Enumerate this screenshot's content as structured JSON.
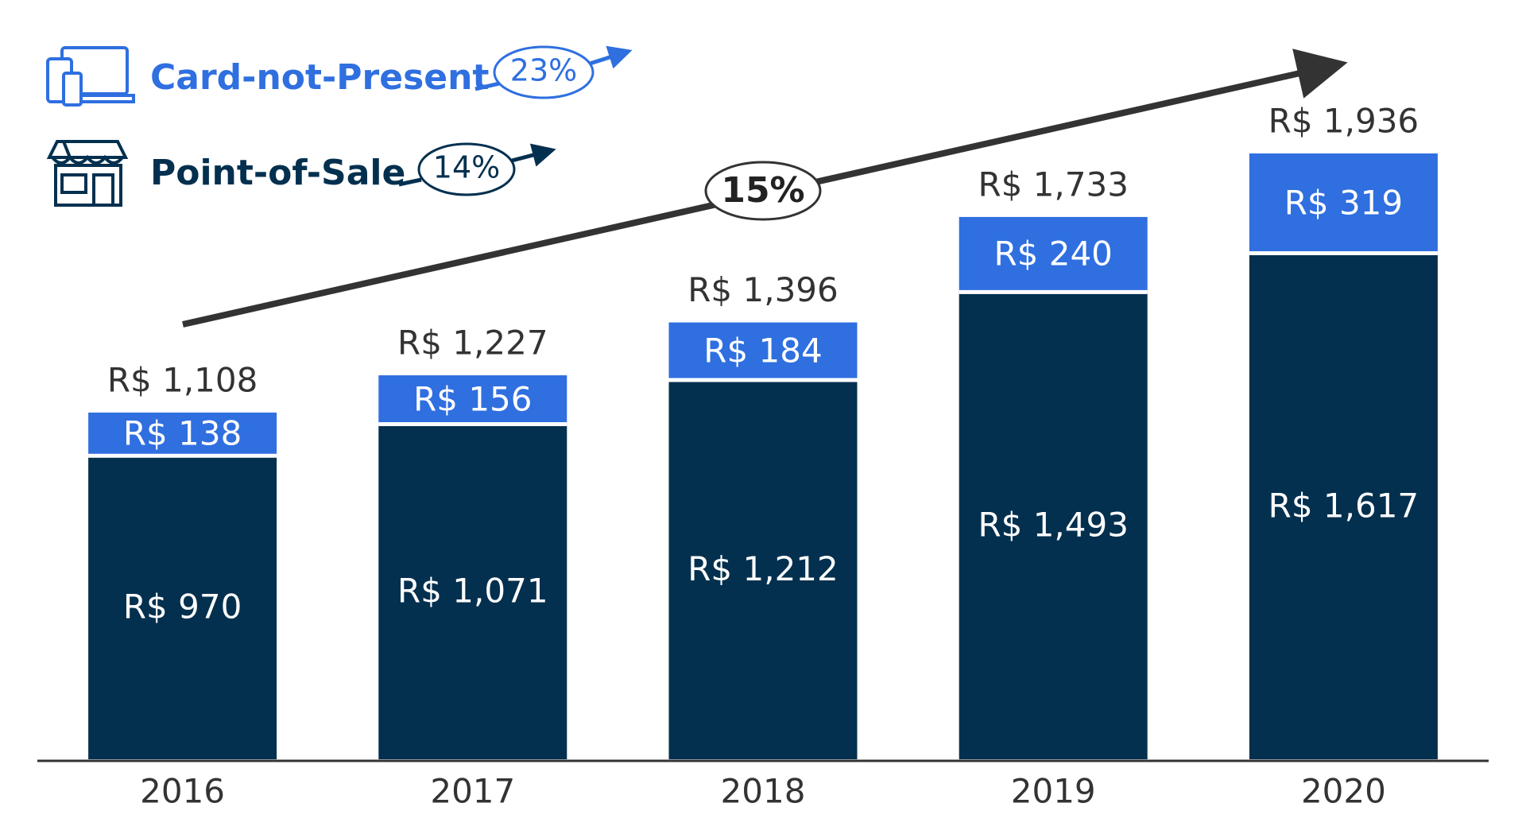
{
  "chart_data": {
    "type": "stacked-bar",
    "categories": [
      "2016",
      "2017",
      "2018",
      "2019",
      "2020"
    ],
    "series": [
      {
        "name": "Point-of-Sale",
        "color": "#04304f",
        "growth": "14%",
        "values": [
          970,
          1071,
          1212,
          1493,
          1617
        ],
        "value_labels": [
          "R$ 970",
          "R$ 1,071",
          "R$ 1,212",
          "R$ 1,493",
          "R$ 1,617"
        ]
      },
      {
        "name": "Card-not-Present",
        "color": "#2f6fe0",
        "growth": "23%",
        "values": [
          138,
          156,
          184,
          240,
          319
        ],
        "value_labels": [
          "R$ 138",
          "R$ 156",
          "R$ 184",
          "R$ 240",
          "R$ 319"
        ]
      }
    ],
    "totals": [
      1108,
      1227,
      1396,
      1733,
      1936
    ],
    "total_labels": [
      "R$ 1,108",
      "R$ 1,227",
      "R$ 1,396",
      "R$ 1,733",
      "R$ 1,936"
    ],
    "trend_label": "15%"
  }
}
